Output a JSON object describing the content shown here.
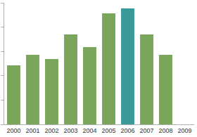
{
  "chart_data": {
    "type": "bar",
    "categories": [
      "2000",
      "2001",
      "2002",
      "2003",
      "2004",
      "2005",
      "2006",
      "2007",
      "2008",
      "2009"
    ],
    "values": [
      2.43,
      2.86,
      2.69,
      3.7,
      3.18,
      4.57,
      4.77,
      3.7,
      2.86,
      null
    ],
    "colors": [
      "#7aa65c",
      "#7aa65c",
      "#7aa65c",
      "#7aa65c",
      "#7aa65c",
      "#7aa65c",
      "#3a9a9a",
      "#7aa65c",
      "#7aa65c",
      "#7aa65c"
    ],
    "ylim": [
      0,
      5
    ],
    "yticks": [
      0,
      1,
      2,
      3,
      4,
      5
    ],
    "grid": false,
    "tick_labels": "x"
  }
}
